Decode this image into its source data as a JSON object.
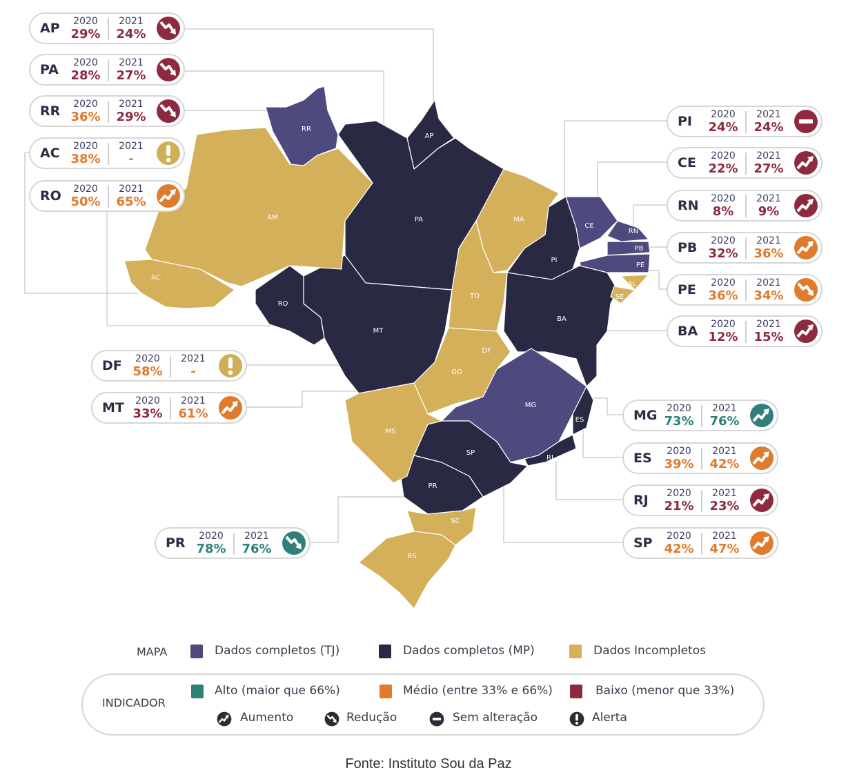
{
  "colors": {
    "tj": "#4f4a7e",
    "mp": "#2a2944",
    "incomplete": "#d4b05a",
    "alto": "#2f7f7a",
    "medio": "#e07a2c",
    "baixo": "#8e2a3f",
    "alert": "#cfae56"
  },
  "year_labels": {
    "a": "2020",
    "b": "2021"
  },
  "states": [
    {
      "code": "AP",
      "v2020": "29%",
      "v2021": "24%",
      "l2020": "baixo",
      "l2021": "baixo",
      "trend": "reducao",
      "map": "mp"
    },
    {
      "code": "PA",
      "v2020": "28%",
      "v2021": "27%",
      "l2020": "baixo",
      "l2021": "baixo",
      "trend": "reducao",
      "map": "mp"
    },
    {
      "code": "RR",
      "v2020": "36%",
      "v2021": "29%",
      "l2020": "medio",
      "l2021": "baixo",
      "trend": "reducao",
      "map": "tj"
    },
    {
      "code": "AC",
      "v2020": "38%",
      "v2021": "-",
      "l2020": "medio",
      "l2021": "medio",
      "trend": "alerta",
      "map": "incomplete"
    },
    {
      "code": "RO",
      "v2020": "50%",
      "v2021": "65%",
      "l2020": "medio",
      "l2021": "medio",
      "trend": "aumento",
      "map": "mp"
    },
    {
      "code": "PI",
      "v2020": "24%",
      "v2021": "24%",
      "l2020": "baixo",
      "l2021": "baixo",
      "trend": "sem",
      "map": "mp"
    },
    {
      "code": "CE",
      "v2020": "22%",
      "v2021": "27%",
      "l2020": "baixo",
      "l2021": "baixo",
      "trend": "aumento",
      "map": "tj"
    },
    {
      "code": "RN",
      "v2020": "8%",
      "v2021": "9%",
      "l2020": "baixo",
      "l2021": "baixo",
      "trend": "aumento",
      "map": "tj"
    },
    {
      "code": "PB",
      "v2020": "32%",
      "v2021": "36%",
      "l2020": "baixo",
      "l2021": "medio",
      "trend": "aumento",
      "map": "tj"
    },
    {
      "code": "PE",
      "v2020": "36%",
      "v2021": "34%",
      "l2020": "medio",
      "l2021": "medio",
      "trend": "reducao",
      "map": "tj"
    },
    {
      "code": "BA",
      "v2020": "12%",
      "v2021": "15%",
      "l2020": "baixo",
      "l2021": "baixo",
      "trend": "aumento",
      "map": "mp"
    },
    {
      "code": "DF",
      "v2020": "58%",
      "v2021": "-",
      "l2020": "medio",
      "l2021": "medio",
      "trend": "alerta",
      "map": "incomplete"
    },
    {
      "code": "MT",
      "v2020": "33%",
      "v2021": "61%",
      "l2020": "baixo",
      "l2021": "medio",
      "trend": "aumento",
      "map": "mp"
    },
    {
      "code": "MG",
      "v2020": "73%",
      "v2021": "76%",
      "l2020": "alto",
      "l2021": "alto",
      "trend": "aumento",
      "map": "tj"
    },
    {
      "code": "ES",
      "v2020": "39%",
      "v2021": "42%",
      "l2020": "medio",
      "l2021": "medio",
      "trend": "aumento",
      "map": "mp"
    },
    {
      "code": "RJ",
      "v2020": "21%",
      "v2021": "23%",
      "l2020": "baixo",
      "l2021": "baixo",
      "trend": "aumento",
      "map": "mp"
    },
    {
      "code": "SP",
      "v2020": "42%",
      "v2021": "47%",
      "l2020": "medio",
      "l2021": "medio",
      "trend": "aumento",
      "map": "mp"
    },
    {
      "code": "PR",
      "v2020": "78%",
      "v2021": "76%",
      "l2020": "alto",
      "l2021": "alto",
      "trend": "reducao",
      "map": "mp"
    }
  ],
  "map_only_states": [
    {
      "code": "AM",
      "map": "incomplete"
    },
    {
      "code": "MA",
      "map": "incomplete"
    },
    {
      "code": "TO",
      "map": "incomplete"
    },
    {
      "code": "AL",
      "map": "incomplete"
    },
    {
      "code": "SE",
      "map": "incomplete"
    },
    {
      "code": "GO",
      "map": "incomplete"
    },
    {
      "code": "MS",
      "map": "incomplete"
    },
    {
      "code": "SC",
      "map": "incomplete"
    },
    {
      "code": "RS",
      "map": "incomplete"
    }
  ],
  "legend": {
    "mapa_title": "MAPA",
    "mapa_items": [
      {
        "label": "Dados completos (TJ)",
        "color": "#4f4a7e"
      },
      {
        "label": "Dados completos (MP)",
        "color": "#2a2944"
      },
      {
        "label": "Dados Incompletos",
        "color": "#d4b05a"
      }
    ],
    "indicador_title": "INDICADOR",
    "level_items": [
      {
        "label": "Alto (maior que 66%)",
        "color": "#2f7f7a"
      },
      {
        "label": "Médio (entre 33% e 66%)",
        "color": "#e07a2c"
      },
      {
        "label": "Baixo (menor que 33%)",
        "color": "#8e2a3f"
      }
    ],
    "trend_items": [
      {
        "label": "Aumento",
        "icon": "aumento"
      },
      {
        "label": "Redução",
        "icon": "reducao"
      },
      {
        "label": "Sem alteração",
        "icon": "sem"
      },
      {
        "label": "Alerta",
        "icon": "alerta"
      }
    ]
  },
  "source": "Fonte: Instituto Sou da Paz"
}
